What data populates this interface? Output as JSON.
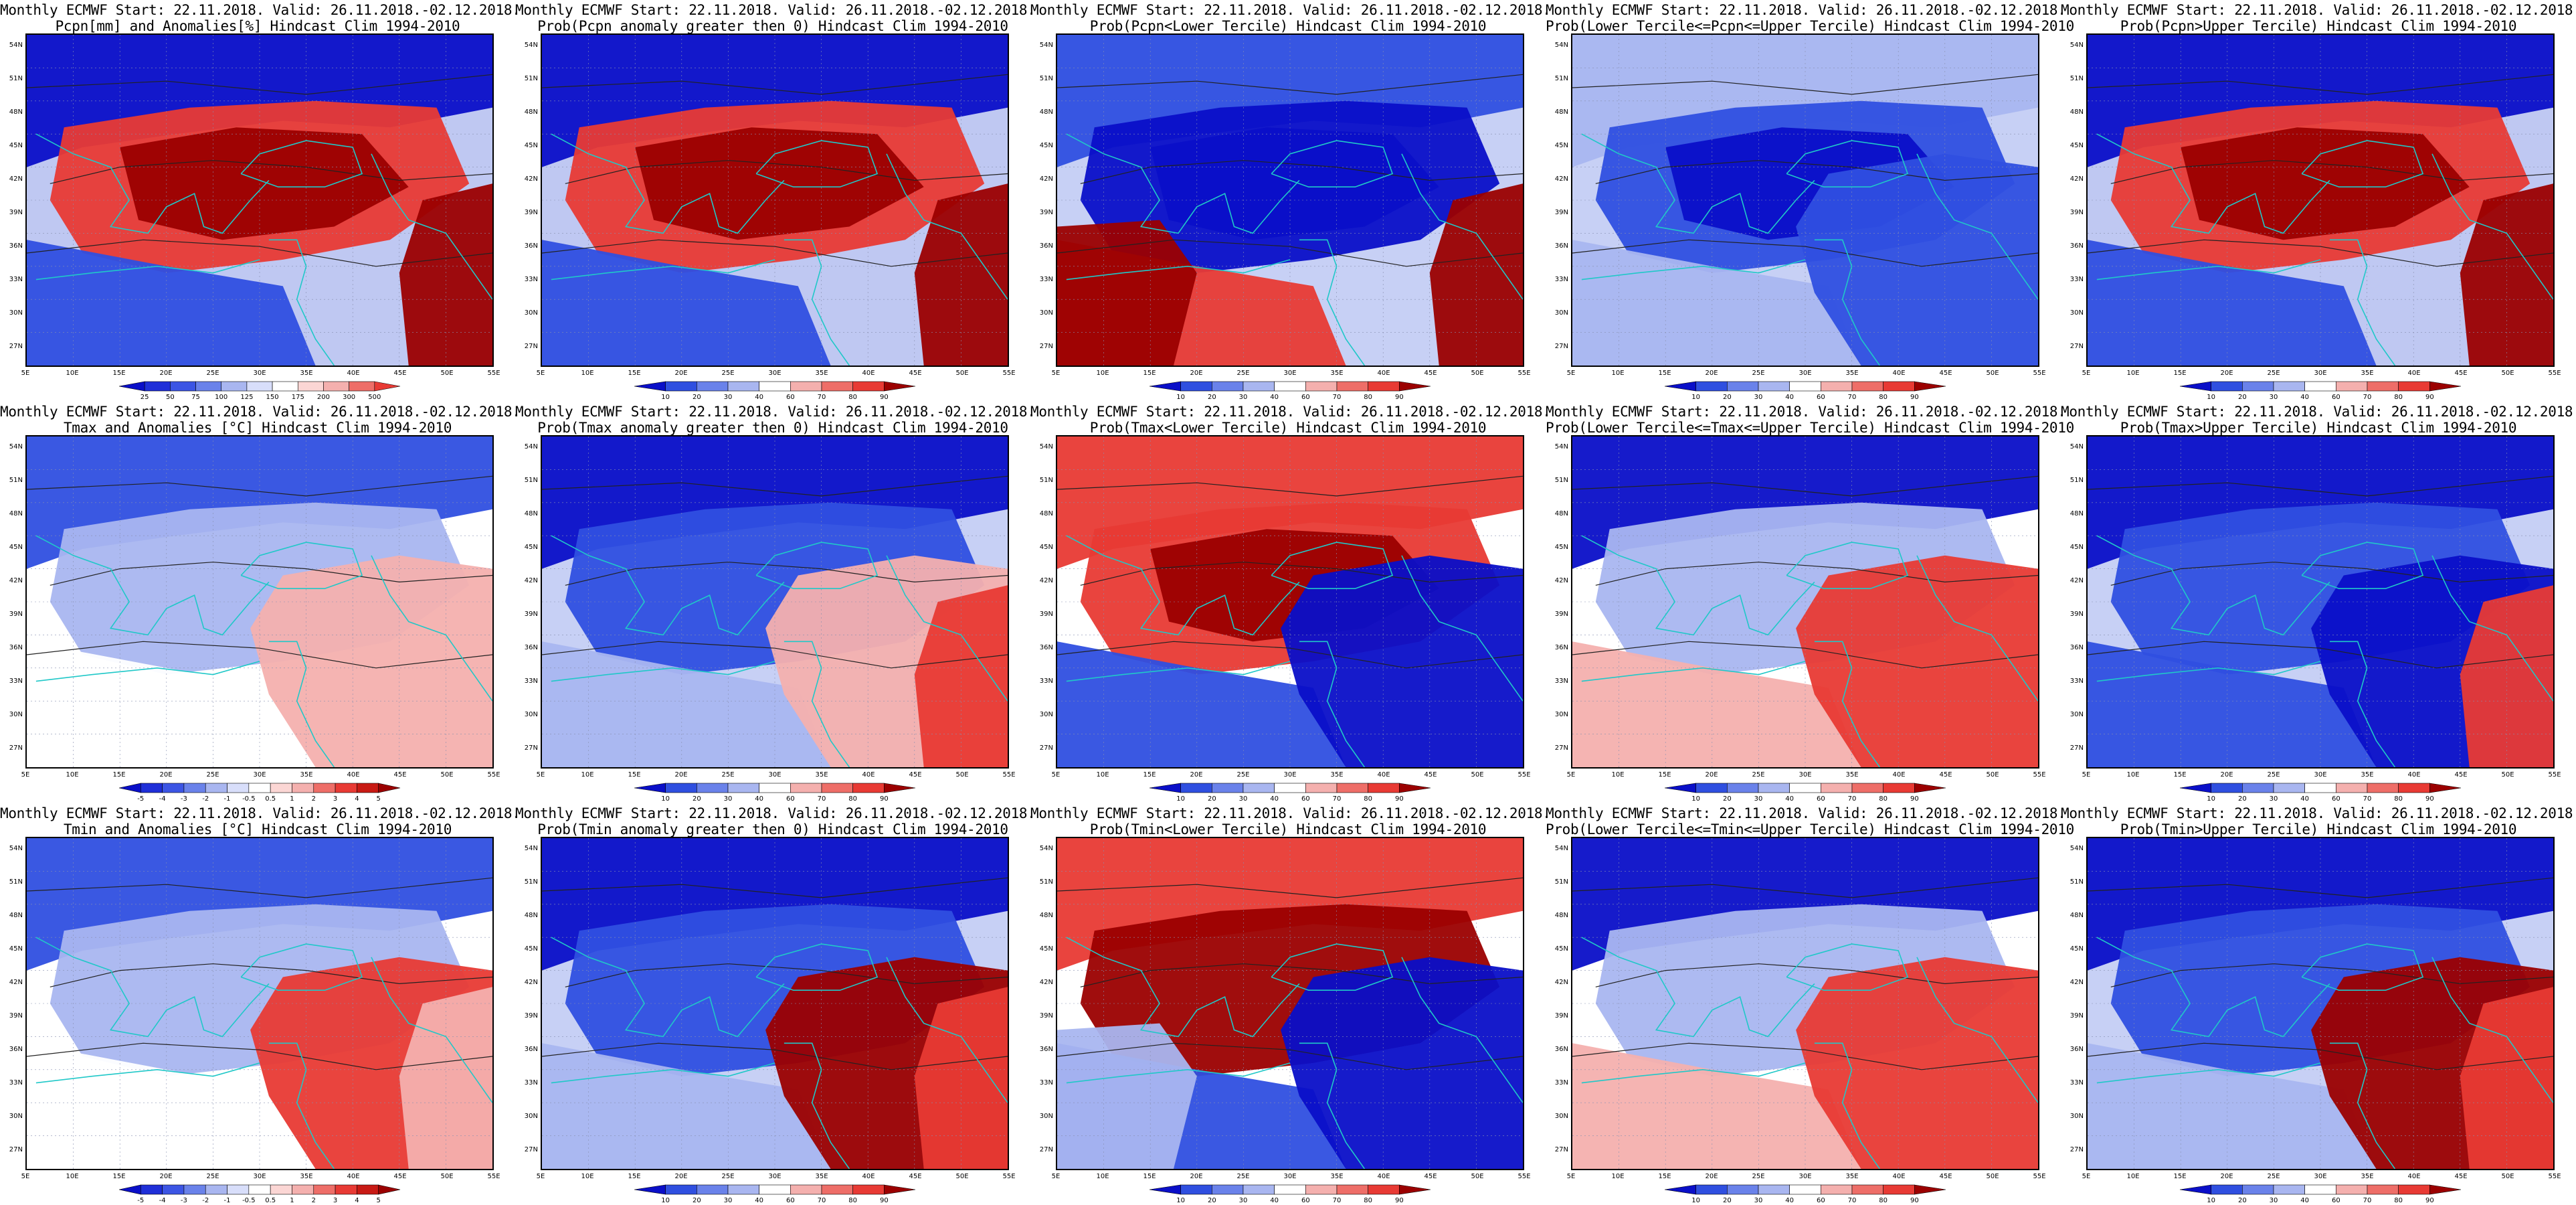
{
  "header_line": "Monthly ECMWF Start: 22.11.2018. Valid: 26.11.2018.-02.12.2018.",
  "lat_labels": [
    "54N",
    "51N",
    "48N",
    "45N",
    "42N",
    "39N",
    "36N",
    "33N",
    "30N",
    "27N"
  ],
  "lon_labels": [
    "5E",
    "10E",
    "15E",
    "20E",
    "25E",
    "30E",
    "35E",
    "40E",
    "45E",
    "50E",
    "55E"
  ],
  "colors": {
    "deep_blue": "#0a0fc8",
    "blue": "#2f4fe0",
    "light_blue": "#a9b6f0",
    "white": "#ffffff",
    "light_red": "#f4b0ae",
    "red": "#e83a34",
    "deep_red": "#9b0000",
    "coast": "#20c8c8",
    "contour": "#222222"
  },
  "rows": [
    {
      "variable": "Pcpn",
      "panels": [
        {
          "title2": "Pcpn[mm] and Anomalies[%] Hindcast Clim 1994-2010",
          "kind": "anom",
          "colorbar": [
            "25",
            "50",
            "75",
            "100",
            "125",
            "150",
            "175",
            "200",
            "300",
            "500"
          ],
          "pattern": "wet"
        },
        {
          "title2": "Prob(Pcpn anomaly greater then 0) Hindcast Clim 1994-2010",
          "kind": "prob",
          "colorbar": [
            "10",
            "20",
            "30",
            "40",
            "60",
            "70",
            "80",
            "90"
          ],
          "pattern": "wet"
        },
        {
          "title2": "Prob(Pcpn<Lower Tercile) Hindcast Clim 1994-2010",
          "kind": "prob",
          "colorbar": [
            "10",
            "20",
            "30",
            "40",
            "60",
            "70",
            "80",
            "90"
          ],
          "pattern": "drylow"
        },
        {
          "title2": "Prob(Lower Tercile<=Pcpn<=Upper Tercile) Hindcast Clim 1994-2010",
          "kind": "prob",
          "colorbar": [
            "10",
            "20",
            "30",
            "40",
            "60",
            "70",
            "80",
            "90"
          ],
          "pattern": "mid"
        },
        {
          "title2": "Prob(Pcpn>Upper Tercile) Hindcast Clim 1994-2010",
          "kind": "prob",
          "colorbar": [
            "10",
            "20",
            "30",
            "40",
            "60",
            "70",
            "80",
            "90"
          ],
          "pattern": "wet"
        }
      ]
    },
    {
      "variable": "Tmax",
      "panels": [
        {
          "title2": "Tmax and Anomalies [°C] Hindcast Clim 1994-2010",
          "kind": "anom",
          "colorbar": [
            "-5",
            "-4",
            "-3",
            "-2",
            "-1",
            "-0.5",
            "0.5",
            "1",
            "2",
            "3",
            "4",
            "5"
          ],
          "pattern": "coldnorth_light"
        },
        {
          "title2": "Prob(Tmax anomaly greater then 0) Hindcast Clim 1994-2010",
          "kind": "prob",
          "colorbar": [
            "10",
            "20",
            "30",
            "40",
            "60",
            "70",
            "80",
            "90"
          ],
          "pattern": "coldnorth"
        },
        {
          "title2": "Prob(Tmax<Lower Tercile) Hindcast Clim 1994-2010",
          "kind": "prob",
          "colorbar": [
            "10",
            "20",
            "30",
            "40",
            "60",
            "70",
            "80",
            "90"
          ],
          "pattern": "rednorth"
        },
        {
          "title2": "Prob(Lower Tercile<=Tmax<=Upper Tercile) Hindcast Clim 1994-2010",
          "kind": "prob",
          "colorbar": [
            "10",
            "20",
            "30",
            "40",
            "60",
            "70",
            "80",
            "90"
          ],
          "pattern": "coldnorth_se"
        },
        {
          "title2": "Prob(Tmax>Upper Tercile) Hindcast Clim 1994-2010",
          "kind": "prob",
          "colorbar": [
            "10",
            "20",
            "30",
            "40",
            "60",
            "70",
            "80",
            "90"
          ],
          "pattern": "coldall"
        }
      ]
    },
    {
      "variable": "Tmin",
      "panels": [
        {
          "title2": "Tmin and Anomalies [°C] Hindcast Clim 1994-2010",
          "kind": "anom",
          "colorbar": [
            "-5",
            "-4",
            "-3",
            "-2",
            "-1",
            "-0.5",
            "0.5",
            "1",
            "2",
            "3",
            "4",
            "5"
          ],
          "pattern": "warmse"
        },
        {
          "title2": "Prob(Tmin anomaly greater then 0) Hindcast Clim 1994-2010",
          "kind": "prob",
          "colorbar": [
            "10",
            "20",
            "30",
            "40",
            "60",
            "70",
            "80",
            "90"
          ],
          "pattern": "warmse_strong"
        },
        {
          "title2": "Prob(Tmin<Lower Tercile) Hindcast Clim 1994-2010",
          "kind": "prob",
          "colorbar": [
            "10",
            "20",
            "30",
            "40",
            "60",
            "70",
            "80",
            "90"
          ],
          "pattern": "rednorth2"
        },
        {
          "title2": "Prob(Lower Tercile<=Tmin<=Upper Tercile) Hindcast Clim 1994-2010",
          "kind": "prob",
          "colorbar": [
            "10",
            "20",
            "30",
            "40",
            "60",
            "70",
            "80",
            "90"
          ],
          "pattern": "coldnorth_se"
        },
        {
          "title2": "Prob(Tmin>Upper Tercile) Hindcast Clim 1994-2010",
          "kind": "prob",
          "colorbar": [
            "10",
            "20",
            "30",
            "40",
            "60",
            "70",
            "80",
            "90"
          ],
          "pattern": "warmse_strong"
        }
      ]
    }
  ]
}
